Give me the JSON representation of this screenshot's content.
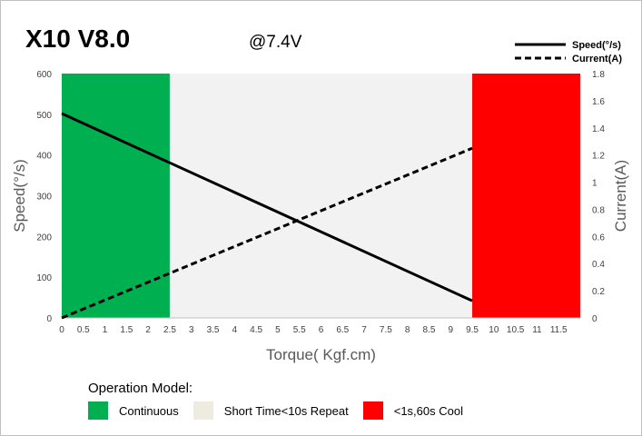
{
  "chart_data": {
    "type": "line",
    "title": "X10 V8.0",
    "subtitle": "@7.4V",
    "xlabel": "Torque( Kgf.cm)",
    "ylabel": "Speed(°/s)",
    "y2label": "Current(A)",
    "xlim": [
      0,
      12
    ],
    "ylim": [
      0,
      600
    ],
    "y2lim": [
      0,
      1.8
    ],
    "x_ticks": [
      "0",
      "0.5",
      "1",
      "1.5",
      "2",
      "2.5",
      "3",
      "3.5",
      "4",
      "4.5",
      "5",
      "5.5",
      "6",
      "6.5",
      "7",
      "7.5",
      "8",
      "8.5",
      "9",
      "9.5",
      "10",
      "10.5",
      "11",
      "11.5"
    ],
    "y_ticks": [
      "0",
      "100",
      "200",
      "300",
      "400",
      "500",
      "600"
    ],
    "y2_ticks": [
      "0",
      "0.2",
      "0.4",
      "0.6",
      "0.8",
      "1",
      "1.2",
      "1.4",
      "1.6",
      "1.8"
    ],
    "series": [
      {
        "name": "Speed(°/s)",
        "axis": "left",
        "style": "solid",
        "x": [
          0,
          9.5
        ],
        "y": [
          502,
          42
        ]
      },
      {
        "name": "Current(A)",
        "axis": "right",
        "style": "dashed",
        "x": [
          0,
          9.5
        ],
        "y": [
          0,
          1.25
        ]
      }
    ],
    "regions": [
      {
        "label": "Continuous",
        "x": [
          0,
          2.5
        ],
        "color": "#00b050"
      },
      {
        "label": "Short Time<10s Repeat",
        "x": [
          2.5,
          9.5
        ],
        "color": "#f2f2f2"
      },
      {
        "label": "<1s,60s Cool",
        "x": [
          9.5,
          12
        ],
        "color": "#ff0000"
      }
    ],
    "grid": false,
    "legend_position": "top-right"
  },
  "operation_legend": {
    "title": "Operation Model:",
    "items": [
      {
        "label": "Continuous",
        "color": "#00b050"
      },
      {
        "label": "Short Time<10s Repeat",
        "color": "#eeece1"
      },
      {
        "label": "<1s,60s Cool",
        "color": "#ff0000"
      }
    ]
  }
}
